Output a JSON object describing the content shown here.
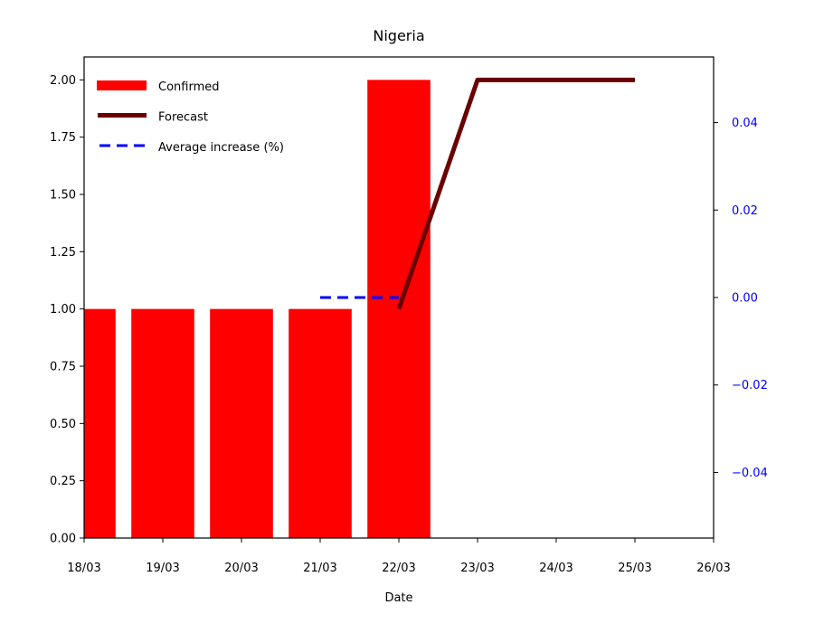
{
  "chart_data": {
    "type": "bar",
    "title": "Nigeria",
    "xlabel": "Date",
    "ylabel": "",
    "x_ticks": [
      "18/03",
      "19/03",
      "20/03",
      "21/03",
      "22/03",
      "23/03",
      "24/03",
      "25/03",
      "26/03"
    ],
    "ylim": [
      0,
      2.1
    ],
    "y_ticks": [
      "0.00",
      "0.25",
      "0.50",
      "0.75",
      "1.00",
      "1.25",
      "1.50",
      "1.75",
      "2.00"
    ],
    "y2lim": [
      -0.055,
      0.055
    ],
    "y2_ticks": [
      "−0.04",
      "−0.02",
      "0.00",
      "0.02",
      "0.04"
    ],
    "series": [
      {
        "name": "Confirmed",
        "kind": "bar",
        "color": "#ff0000",
        "x": [
          "18/03",
          "19/03",
          "20/03",
          "21/03",
          "22/03"
        ],
        "values": [
          1,
          1,
          1,
          1,
          2
        ]
      },
      {
        "name": "Forecast",
        "kind": "line",
        "color": "#6b0000",
        "x": [
          "22/03",
          "23/03",
          "24/03",
          "25/03"
        ],
        "values": [
          1,
          2,
          2,
          2
        ]
      },
      {
        "name": "Average increase (%)",
        "kind": "dashed-line",
        "axis": "right",
        "color": "#0000ff",
        "x": [
          "21/03",
          "22/03"
        ],
        "values": [
          0,
          0
        ]
      }
    ],
    "legend": {
      "placement": "top-left",
      "entries": [
        "Confirmed",
        "Forecast",
        "Average increase (%)"
      ]
    },
    "grid": false
  }
}
